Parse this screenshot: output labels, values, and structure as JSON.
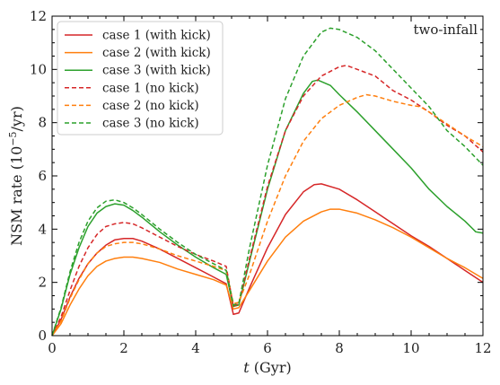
{
  "chart_data": {
    "type": "line",
    "annotation": "two-infall",
    "xlabel": {
      "italic": "t",
      "rest": " (Gyr)"
    },
    "ylabel": {
      "prefix": "NSM rate (10",
      "exp": "−5",
      "suffix": "/yr)"
    },
    "xlim": [
      0,
      12
    ],
    "ylim": [
      0,
      12
    ],
    "x_ticks": [
      0,
      2,
      4,
      6,
      8,
      10,
      12
    ],
    "y_ticks": [
      0,
      2,
      4,
      6,
      8,
      10,
      12
    ],
    "legend_position": "top-left",
    "series": [
      {
        "name": "case 1 (with kick)",
        "color": "#d62728",
        "style": "solid",
        "points": [
          [
            0,
            0
          ],
          [
            0.25,
            0.6
          ],
          [
            0.5,
            1.45
          ],
          [
            0.75,
            2.15
          ],
          [
            1.0,
            2.7
          ],
          [
            1.25,
            3.1
          ],
          [
            1.5,
            3.4
          ],
          [
            1.75,
            3.6
          ],
          [
            2.0,
            3.65
          ],
          [
            2.25,
            3.65
          ],
          [
            2.5,
            3.55
          ],
          [
            3.0,
            3.25
          ],
          [
            3.5,
            2.9
          ],
          [
            4.0,
            2.55
          ],
          [
            4.5,
            2.2
          ],
          [
            4.85,
            1.95
          ],
          [
            5.05,
            0.8
          ],
          [
            5.2,
            0.85
          ],
          [
            5.5,
            1.8
          ],
          [
            6.0,
            3.3
          ],
          [
            6.5,
            4.55
          ],
          [
            7.0,
            5.4
          ],
          [
            7.3,
            5.67
          ],
          [
            7.5,
            5.7
          ],
          [
            8.0,
            5.5
          ],
          [
            8.5,
            5.1
          ],
          [
            9.0,
            4.65
          ],
          [
            9.5,
            4.2
          ],
          [
            10.0,
            3.75
          ],
          [
            10.5,
            3.35
          ],
          [
            11.0,
            2.9
          ],
          [
            11.5,
            2.45
          ],
          [
            12,
            2.0
          ]
        ]
      },
      {
        "name": "case 2 (with kick)",
        "color": "#ff7f0e",
        "style": "solid",
        "points": [
          [
            0,
            0
          ],
          [
            0.25,
            0.45
          ],
          [
            0.5,
            1.15
          ],
          [
            0.75,
            1.75
          ],
          [
            1.0,
            2.25
          ],
          [
            1.25,
            2.6
          ],
          [
            1.5,
            2.8
          ],
          [
            1.75,
            2.9
          ],
          [
            2.0,
            2.95
          ],
          [
            2.25,
            2.95
          ],
          [
            2.5,
            2.9
          ],
          [
            3.0,
            2.75
          ],
          [
            3.5,
            2.5
          ],
          [
            4.0,
            2.3
          ],
          [
            4.5,
            2.1
          ],
          [
            4.85,
            1.9
          ],
          [
            5.05,
            1.0
          ],
          [
            5.2,
            1.05
          ],
          [
            5.5,
            1.7
          ],
          [
            6.0,
            2.8
          ],
          [
            6.5,
            3.7
          ],
          [
            7.0,
            4.3
          ],
          [
            7.5,
            4.65
          ],
          [
            7.75,
            4.75
          ],
          [
            8.0,
            4.75
          ],
          [
            8.5,
            4.6
          ],
          [
            9.0,
            4.35
          ],
          [
            9.5,
            4.05
          ],
          [
            10.0,
            3.7
          ],
          [
            10.5,
            3.3
          ],
          [
            11.0,
            2.9
          ],
          [
            11.5,
            2.55
          ],
          [
            12,
            2.15
          ]
        ]
      },
      {
        "name": "case 3 (with kick)",
        "color": "#2ca02c",
        "style": "solid",
        "points": [
          [
            0,
            0
          ],
          [
            0.25,
            1.0
          ],
          [
            0.5,
            2.3
          ],
          [
            0.75,
            3.3
          ],
          [
            1.0,
            4.1
          ],
          [
            1.25,
            4.6
          ],
          [
            1.5,
            4.85
          ],
          [
            1.75,
            4.95
          ],
          [
            2.0,
            4.9
          ],
          [
            2.25,
            4.7
          ],
          [
            2.5,
            4.45
          ],
          [
            3.0,
            3.9
          ],
          [
            3.5,
            3.4
          ],
          [
            4.0,
            2.95
          ],
          [
            4.5,
            2.55
          ],
          [
            4.85,
            2.3
          ],
          [
            5.05,
            1.1
          ],
          [
            5.2,
            1.15
          ],
          [
            5.5,
            2.8
          ],
          [
            6.0,
            5.5
          ],
          [
            6.5,
            7.7
          ],
          [
            7.0,
            9.1
          ],
          [
            7.25,
            9.55
          ],
          [
            7.4,
            9.6
          ],
          [
            7.75,
            9.4
          ],
          [
            8.0,
            9.05
          ],
          [
            8.5,
            8.4
          ],
          [
            9.0,
            7.7
          ],
          [
            9.5,
            7.0
          ],
          [
            10.0,
            6.3
          ],
          [
            10.5,
            5.5
          ],
          [
            11.0,
            4.85
          ],
          [
            11.5,
            4.3
          ],
          [
            11.8,
            3.9
          ],
          [
            12,
            3.85
          ]
        ]
      },
      {
        "name": "case 1 (no kick)",
        "color": "#d62728",
        "style": "dashed",
        "points": [
          [
            0,
            0
          ],
          [
            0.25,
            0.7
          ],
          [
            0.5,
            1.7
          ],
          [
            0.75,
            2.6
          ],
          [
            1.0,
            3.3
          ],
          [
            1.25,
            3.8
          ],
          [
            1.5,
            4.1
          ],
          [
            1.75,
            4.2
          ],
          [
            2.0,
            4.25
          ],
          [
            2.25,
            4.2
          ],
          [
            2.5,
            4.05
          ],
          [
            3.0,
            3.7
          ],
          [
            3.5,
            3.35
          ],
          [
            4.0,
            3.05
          ],
          [
            4.5,
            2.8
          ],
          [
            4.85,
            2.6
          ],
          [
            5.05,
            1.1
          ],
          [
            5.2,
            1.2
          ],
          [
            5.5,
            2.9
          ],
          [
            6.0,
            5.6
          ],
          [
            6.5,
            7.7
          ],
          [
            7.0,
            9.0
          ],
          [
            7.5,
            9.75
          ],
          [
            8.0,
            10.1
          ],
          [
            8.2,
            10.15
          ],
          [
            8.5,
            10.0
          ],
          [
            9.0,
            9.75
          ],
          [
            9.5,
            9.2
          ],
          [
            10.0,
            8.85
          ],
          [
            10.5,
            8.4
          ],
          [
            11.0,
            7.9
          ],
          [
            11.5,
            7.5
          ],
          [
            12,
            6.9
          ]
        ]
      },
      {
        "name": "case 2 (no kick)",
        "color": "#ff7f0e",
        "style": "dashed",
        "points": [
          [
            0,
            0
          ],
          [
            0.25,
            0.55
          ],
          [
            0.5,
            1.4
          ],
          [
            0.75,
            2.1
          ],
          [
            1.0,
            2.7
          ],
          [
            1.25,
            3.1
          ],
          [
            1.5,
            3.35
          ],
          [
            1.75,
            3.45
          ],
          [
            2.0,
            3.5
          ],
          [
            2.25,
            3.5
          ],
          [
            2.5,
            3.45
          ],
          [
            3.0,
            3.25
          ],
          [
            3.5,
            3.0
          ],
          [
            4.0,
            2.8
          ],
          [
            4.5,
            2.6
          ],
          [
            4.85,
            2.45
          ],
          [
            5.05,
            1.2
          ],
          [
            5.2,
            1.25
          ],
          [
            5.5,
            2.3
          ],
          [
            6.0,
            4.3
          ],
          [
            6.5,
            6.0
          ],
          [
            7.0,
            7.3
          ],
          [
            7.5,
            8.15
          ],
          [
            8.0,
            8.65
          ],
          [
            8.5,
            8.95
          ],
          [
            8.75,
            9.05
          ],
          [
            9.0,
            9.0
          ],
          [
            9.5,
            8.8
          ],
          [
            10.0,
            8.65
          ],
          [
            10.25,
            8.6
          ],
          [
            10.5,
            8.4
          ],
          [
            11.0,
            7.95
          ],
          [
            11.5,
            7.5
          ],
          [
            12,
            7.1
          ]
        ]
      },
      {
        "name": "case 3 (no kick)",
        "color": "#2ca02c",
        "style": "dashed",
        "points": [
          [
            0,
            0
          ],
          [
            0.25,
            1.05
          ],
          [
            0.5,
            2.4
          ],
          [
            0.75,
            3.5
          ],
          [
            1.0,
            4.3
          ],
          [
            1.25,
            4.8
          ],
          [
            1.5,
            5.05
          ],
          [
            1.75,
            5.1
          ],
          [
            2.0,
            5.0
          ],
          [
            2.25,
            4.8
          ],
          [
            2.5,
            4.55
          ],
          [
            3.0,
            4.0
          ],
          [
            3.5,
            3.5
          ],
          [
            4.0,
            3.05
          ],
          [
            4.5,
            2.7
          ],
          [
            4.85,
            2.45
          ],
          [
            5.05,
            1.15
          ],
          [
            5.2,
            1.2
          ],
          [
            5.5,
            3.3
          ],
          [
            6.0,
            6.4
          ],
          [
            6.5,
            8.9
          ],
          [
            7.0,
            10.5
          ],
          [
            7.5,
            11.4
          ],
          [
            7.75,
            11.55
          ],
          [
            8.0,
            11.5
          ],
          [
            8.5,
            11.2
          ],
          [
            9.0,
            10.7
          ],
          [
            9.5,
            10.0
          ],
          [
            10.0,
            9.3
          ],
          [
            10.5,
            8.6
          ],
          [
            11.0,
            7.7
          ],
          [
            11.5,
            7.1
          ],
          [
            12,
            6.4
          ]
        ]
      }
    ]
  }
}
